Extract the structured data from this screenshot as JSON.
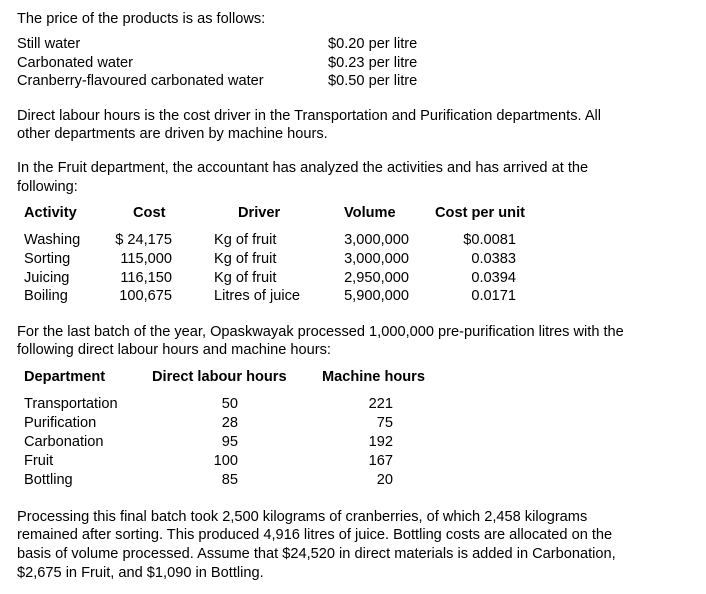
{
  "intro": "The price of the products is as follows:",
  "prices": [
    {
      "product": "Still water",
      "price": "$0.20 per litre"
    },
    {
      "product": "Carbonated water",
      "price": "$0.23 per litre"
    },
    {
      "product": "Cranberry-flavoured carbonated water",
      "price": "$0.50 per litre"
    }
  ],
  "para_drivers": [
    "Direct labour hours is the cost driver in the Transportation and Purification departments. All",
    "other departments are driven by machine hours."
  ],
  "para_fruit": [
    "In the Fruit department, the accountant has analyzed the activities and has arrived at the",
    "following:"
  ],
  "activity_table": {
    "headers": [
      "Activity",
      "Cost",
      "Driver",
      "Volume",
      "Cost per unit"
    ],
    "rows": [
      [
        "Washing",
        "$ 24,175",
        "Kg of fruit",
        "3,000,000",
        "$0.0081"
      ],
      [
        "Sorting",
        "115,000",
        "Kg of fruit",
        "3,000,000",
        "0.0383"
      ],
      [
        "Juicing",
        "116,150",
        "Kg of fruit",
        "2,950,000",
        "0.0394"
      ],
      [
        "Boiling",
        "100,675",
        "Litres of juice",
        "5,900,000",
        "0.0171"
      ]
    ]
  },
  "para_batch": [
    "For the last batch of the year, Opaskwayak processed 1,000,000 pre-purification litres with the",
    "following direct labour hours and machine hours:"
  ],
  "dept_table": {
    "headers": [
      "Department",
      "Direct labour hours",
      "Machine hours"
    ],
    "rows": [
      [
        "Transportation",
        "50",
        "221"
      ],
      [
        "Purification",
        "28",
        "75"
      ],
      [
        "Carbonation",
        "95",
        "192"
      ],
      [
        "Fruit",
        "100",
        "167"
      ],
      [
        "Bottling",
        "85",
        "20"
      ]
    ]
  },
  "para_processing": [
    "Processing this final batch took 2,500 kilograms of cranberries, of which 2,458 kilograms",
    "remained after sorting. This produced 4,916 litres of juice. Bottling costs are allocated on the",
    "basis of volume processed. Assume that $24,520 in direct materials is added in Carbonation,",
    "$2,675 in Fruit, and $1,090 in Bottling."
  ]
}
